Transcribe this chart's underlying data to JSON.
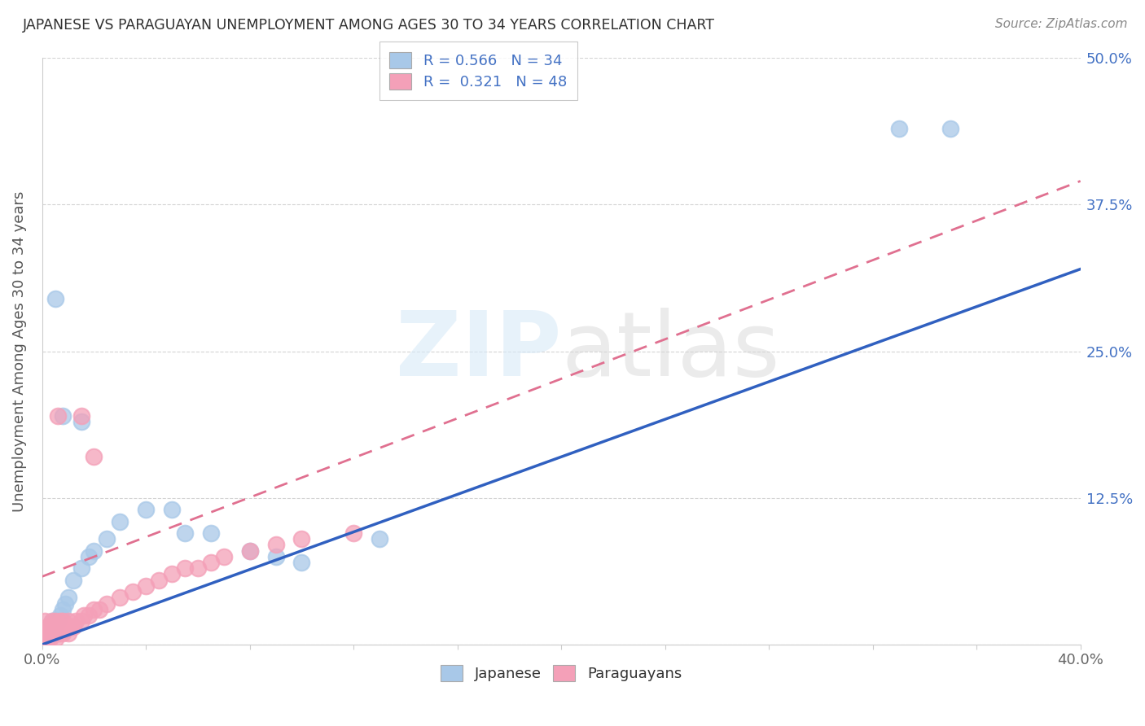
{
  "title": "JAPANESE VS PARAGUAYAN UNEMPLOYMENT AMONG AGES 30 TO 34 YEARS CORRELATION CHART",
  "source": "Source: ZipAtlas.com",
  "ylabel": "Unemployment Among Ages 30 to 34 years",
  "xlim": [
    0.0,
    0.4
  ],
  "ylim": [
    0.0,
    0.5
  ],
  "ytick_positions": [
    0.0,
    0.125,
    0.25,
    0.375,
    0.5
  ],
  "ytick_labels": [
    "",
    "12.5%",
    "25.0%",
    "37.5%",
    "50.0%"
  ],
  "xtick_positions": [
    0.0,
    0.04,
    0.08,
    0.12,
    0.16,
    0.2,
    0.24,
    0.28,
    0.32,
    0.36,
    0.4
  ],
  "xtick_labels": [
    "0.0%",
    "",
    "",
    "",
    "",
    "",
    "",
    "",
    "",
    "",
    "40.0%"
  ],
  "japanese_R": "0.566",
  "japanese_N": "34",
  "paraguayan_R": "0.321",
  "paraguayan_N": "48",
  "japanese_color": "#a8c8e8",
  "paraguayan_color": "#f4a0b8",
  "japanese_line_color": "#3060c0",
  "paraguayan_line_color": "#e07090",
  "background_color": "#ffffff",
  "jp_trend_x0": 0.0,
  "jp_trend_y0": 0.0,
  "jp_trend_x1": 0.4,
  "jp_trend_y1": 0.32,
  "py_trend_x0": 0.0,
  "py_trend_y0": 0.058,
  "py_trend_x1": 0.4,
  "py_trend_y1": 0.395,
  "japanese_x": [
    0.001,
    0.001,
    0.002,
    0.002,
    0.003,
    0.003,
    0.004,
    0.004,
    0.005,
    0.005,
    0.006,
    0.007,
    0.008,
    0.009,
    0.01,
    0.012,
    0.015,
    0.018,
    0.02,
    0.025,
    0.03,
    0.04,
    0.05,
    0.055,
    0.065,
    0.08,
    0.09,
    0.1,
    0.13,
    0.35,
    0.33,
    0.005,
    0.008,
    0.015
  ],
  "japanese_y": [
    0.005,
    0.01,
    0.005,
    0.01,
    0.01,
    0.015,
    0.01,
    0.02,
    0.02,
    0.015,
    0.02,
    0.025,
    0.03,
    0.035,
    0.04,
    0.055,
    0.065,
    0.075,
    0.08,
    0.09,
    0.105,
    0.115,
    0.115,
    0.095,
    0.095,
    0.08,
    0.075,
    0.07,
    0.09,
    0.44,
    0.44,
    0.295,
    0.195,
    0.19
  ],
  "paraguayan_x": [
    0.001,
    0.001,
    0.001,
    0.002,
    0.002,
    0.002,
    0.003,
    0.003,
    0.003,
    0.004,
    0.004,
    0.005,
    0.005,
    0.005,
    0.006,
    0.006,
    0.007,
    0.007,
    0.008,
    0.008,
    0.009,
    0.01,
    0.01,
    0.011,
    0.012,
    0.013,
    0.015,
    0.016,
    0.018,
    0.02,
    0.022,
    0.025,
    0.03,
    0.035,
    0.04,
    0.045,
    0.05,
    0.055,
    0.06,
    0.065,
    0.07,
    0.08,
    0.09,
    0.1,
    0.12,
    0.015,
    0.02,
    0.006
  ],
  "paraguayan_y": [
    0.005,
    0.01,
    0.02,
    0.005,
    0.01,
    0.015,
    0.005,
    0.01,
    0.015,
    0.01,
    0.02,
    0.005,
    0.01,
    0.02,
    0.01,
    0.015,
    0.01,
    0.02,
    0.01,
    0.02,
    0.015,
    0.01,
    0.02,
    0.015,
    0.015,
    0.02,
    0.02,
    0.025,
    0.025,
    0.03,
    0.03,
    0.035,
    0.04,
    0.045,
    0.05,
    0.055,
    0.06,
    0.065,
    0.065,
    0.07,
    0.075,
    0.08,
    0.085,
    0.09,
    0.095,
    0.195,
    0.16,
    0.195
  ]
}
